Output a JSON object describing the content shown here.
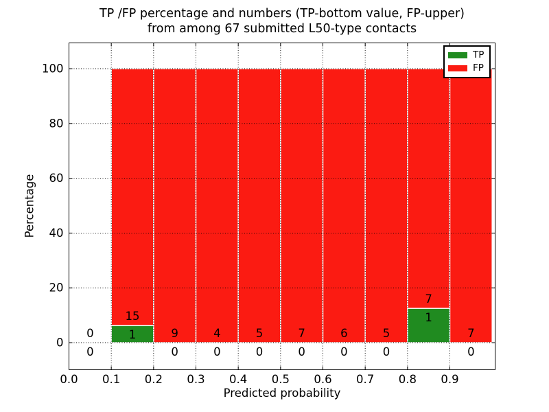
{
  "figure": {
    "title_line1": "TP /FP percentage and numbers (TP-bottom value, FP-upper)",
    "title_line2": "from among 67 submitted L50-type contacts",
    "xlabel": "Predicted probability",
    "ylabel": "Percentage"
  },
  "legend": {
    "position": "upper right",
    "items": [
      {
        "name": "tp-swatch",
        "label": "TP",
        "color": "#208b20"
      },
      {
        "name": "fp-swatch",
        "label": "FP",
        "color": "#fb1b12"
      }
    ]
  },
  "chart_data": {
    "type": "bar",
    "stacked": true,
    "title": "TP /FP percentage and numbers (TP-bottom value, FP-upper)\nfrom among 67 submitted L50-type contacts",
    "xlabel": "Predicted probability",
    "ylabel": "Percentage",
    "total_contacts": 67,
    "xlim": [
      0.0,
      1.007
    ],
    "ylim": [
      -9.8,
      109.5
    ],
    "xticks": [
      0.0,
      0.1,
      0.2,
      0.3,
      0.4,
      0.5,
      0.6,
      0.7,
      0.8,
      0.9
    ],
    "yticks": [
      0,
      20,
      40,
      60,
      80,
      100
    ],
    "grid": "dotted",
    "bin_width": 0.1,
    "bar_height_pct": 100,
    "categories": [
      "0.0-0.1",
      "0.1-0.2",
      "0.2-0.3",
      "0.3-0.4",
      "0.4-0.5",
      "0.5-0.6",
      "0.6-0.7",
      "0.7-0.8",
      "0.8-0.9",
      "0.9-1.0"
    ],
    "series": [
      {
        "name": "TP",
        "color": "#208b20",
        "counts": [
          0,
          1,
          0,
          0,
          0,
          0,
          0,
          0,
          1,
          0
        ]
      },
      {
        "name": "FP",
        "color": "#fb1b12",
        "counts": [
          0,
          15,
          9,
          4,
          5,
          7,
          6,
          5,
          7,
          7
        ]
      }
    ],
    "tp_pct_of_bin": [
      0,
      6.25,
      0,
      0,
      0,
      0,
      0,
      0,
      12.5,
      0
    ]
  }
}
